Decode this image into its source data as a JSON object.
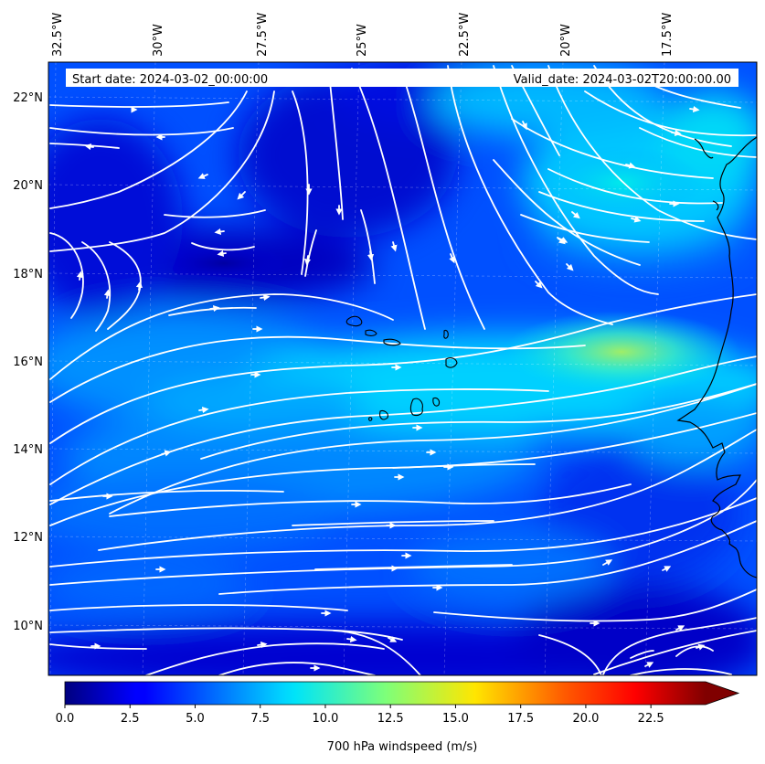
{
  "header": {
    "start_date": "Start date: 2024-03-02_00:00:00",
    "valid_date": "Valid_date: 2024-03-02T20:00:00.00"
  },
  "lon_labels": [
    "32.5°W",
    "30°W",
    "27.5°W",
    "25°W",
    "22.5°W",
    "20°W",
    "17.5°W"
  ],
  "lat_labels": [
    "22°N",
    "20°N",
    "18°N",
    "16°N",
    "14°N",
    "12°N",
    "10°N"
  ],
  "colorbar": {
    "title": "700 hPa windspeed (m/s)",
    "tick_labels": [
      "0.0",
      "2.5",
      "5.0",
      "7.5",
      "10.0",
      "12.5",
      "15.0",
      "17.5",
      "20.0",
      "22.5"
    ],
    "range": [
      0,
      25
    ],
    "extend": "max",
    "colormap": "jet"
  },
  "colors": {
    "streamline": "#ffffff",
    "coastline": "#000000",
    "ocean_dark": "#0000c8",
    "ocean_mid": "#0060ff",
    "jet_core": "#00e0d0",
    "jet_max": "#a0f060"
  },
  "map": {
    "projection": "PlateCarree",
    "gridlines": true,
    "region": "Cape Verde / West Africa coast"
  }
}
